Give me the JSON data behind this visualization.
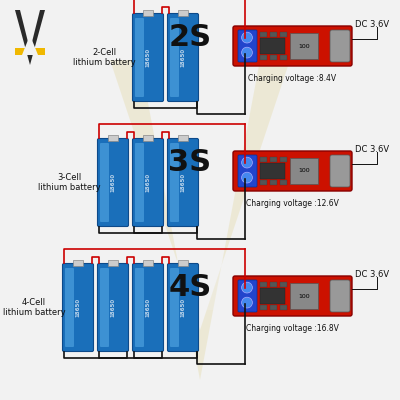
{
  "bg_color": "#f2f2f2",
  "battery_color": "#1a6fba",
  "battery_highlight": "#5aaee8",
  "battery_dark": "#0d4a8a",
  "board_color": "#cc1100",
  "board_edge": "#880000",
  "wire_red": "#cc0000",
  "wire_black": "#111111",
  "text_color": "#111111",
  "logo_color": "#2a2a2a",
  "logo_yellow": "#f0b800",
  "watermark_color": "#d8c870",
  "sections": [
    {
      "label": "2S",
      "cell_label": "2-Cell\nlithium battery",
      "charging_voltage": "Charging voltage :8.4V",
      "dc_label": "DC 3.6V",
      "n_batteries": 2
    },
    {
      "label": "3S",
      "cell_label": "3-Cell\nlithium battery",
      "charging_voltage": "Charging voltage :12.6V",
      "dc_label": "DC 3.6V",
      "n_batteries": 3
    },
    {
      "label": "4S",
      "cell_label": "4-Cell\nlithium battery",
      "charging_voltage": "Charging voltage :16.8V",
      "dc_label": "DC 3.6V",
      "n_batteries": 4
    }
  ]
}
